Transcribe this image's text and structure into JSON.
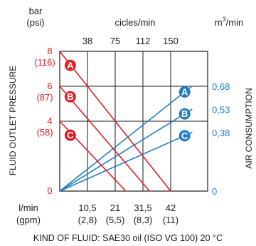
{
  "chart_data": {
    "type": "line",
    "left_unit_top": "bar",
    "left_unit_bottom": "(psi)",
    "top_axis_label": "cicles/min",
    "right_unit_base": "m",
    "right_unit_sup": "3",
    "right_unit_tail": "/min",
    "left_axis_title": "FLUID OUTLET PRESSURE",
    "right_axis_title": "AIR CONSUMPTION",
    "bottom_unit_top": "l/min",
    "bottom_unit_bottom": "(gpm)",
    "footer": "KIND OF FLUID: SAE30 oil (ISO VG 100) 20 °C",
    "x_range": [
      0,
      56
    ],
    "left_range": [
      0,
      8
    ],
    "right_range": [
      0,
      0.9067
    ],
    "top_ticks": [
      {
        "x": 10.5,
        "label": "38"
      },
      {
        "x": 21,
        "label": "75"
      },
      {
        "x": 31.5,
        "label": "112"
      },
      {
        "x": 42,
        "label": "150"
      }
    ],
    "bottom_ticks": [
      {
        "x": 10.5,
        "label": "10,5",
        "sub": "(2,8)"
      },
      {
        "x": 21,
        "label": "21",
        "sub": "(5,5)"
      },
      {
        "x": 31.5,
        "label": "31,5",
        "sub": "(8,3)"
      },
      {
        "x": 42,
        "label": "42",
        "sub": "(11)"
      }
    ],
    "left_ticks": [
      {
        "y": 8,
        "label": "8",
        "sub": "(116)"
      },
      {
        "y": 6,
        "label": "6",
        "sub": "(87)"
      },
      {
        "y": 4,
        "label": "4",
        "sub": "(58)"
      },
      {
        "y": 0,
        "label": "0",
        "sub": ""
      }
    ],
    "right_ticks": [
      {
        "y": 0.68,
        "label": "0,68"
      },
      {
        "y": 0.53,
        "label": "0,53"
      },
      {
        "y": 0.38,
        "label": "0,38"
      },
      {
        "y": 0,
        "label": "0"
      }
    ],
    "pressure_series": [
      {
        "name": "A",
        "points": [
          [
            0,
            8
          ],
          [
            42,
            0
          ]
        ],
        "marker": [
          4,
          7.2
        ]
      },
      {
        "name": "B",
        "points": [
          [
            0,
            6
          ],
          [
            34,
            0
          ]
        ],
        "marker": [
          4,
          5.4
        ]
      },
      {
        "name": "C",
        "points": [
          [
            0,
            4
          ],
          [
            25,
            0
          ]
        ],
        "marker": [
          4,
          3.2
        ]
      }
    ],
    "air_series": [
      {
        "name": "A",
        "points": [
          [
            0,
            0
          ],
          [
            50,
            0.68
          ]
        ],
        "marker": [
          47.3,
          0.643
        ]
      },
      {
        "name": "B",
        "points": [
          [
            0,
            0
          ],
          [
            50,
            0.53
          ]
        ],
        "marker": [
          47.3,
          0.501
        ]
      },
      {
        "name": "C",
        "points": [
          [
            0,
            0
          ],
          [
            50,
            0.38
          ]
        ],
        "marker": [
          47.3,
          0.359
        ]
      }
    ],
    "colors": {
      "pressure": "#e31e24",
      "air": "#1f7fc2",
      "grid": "#1a1a1a"
    }
  }
}
